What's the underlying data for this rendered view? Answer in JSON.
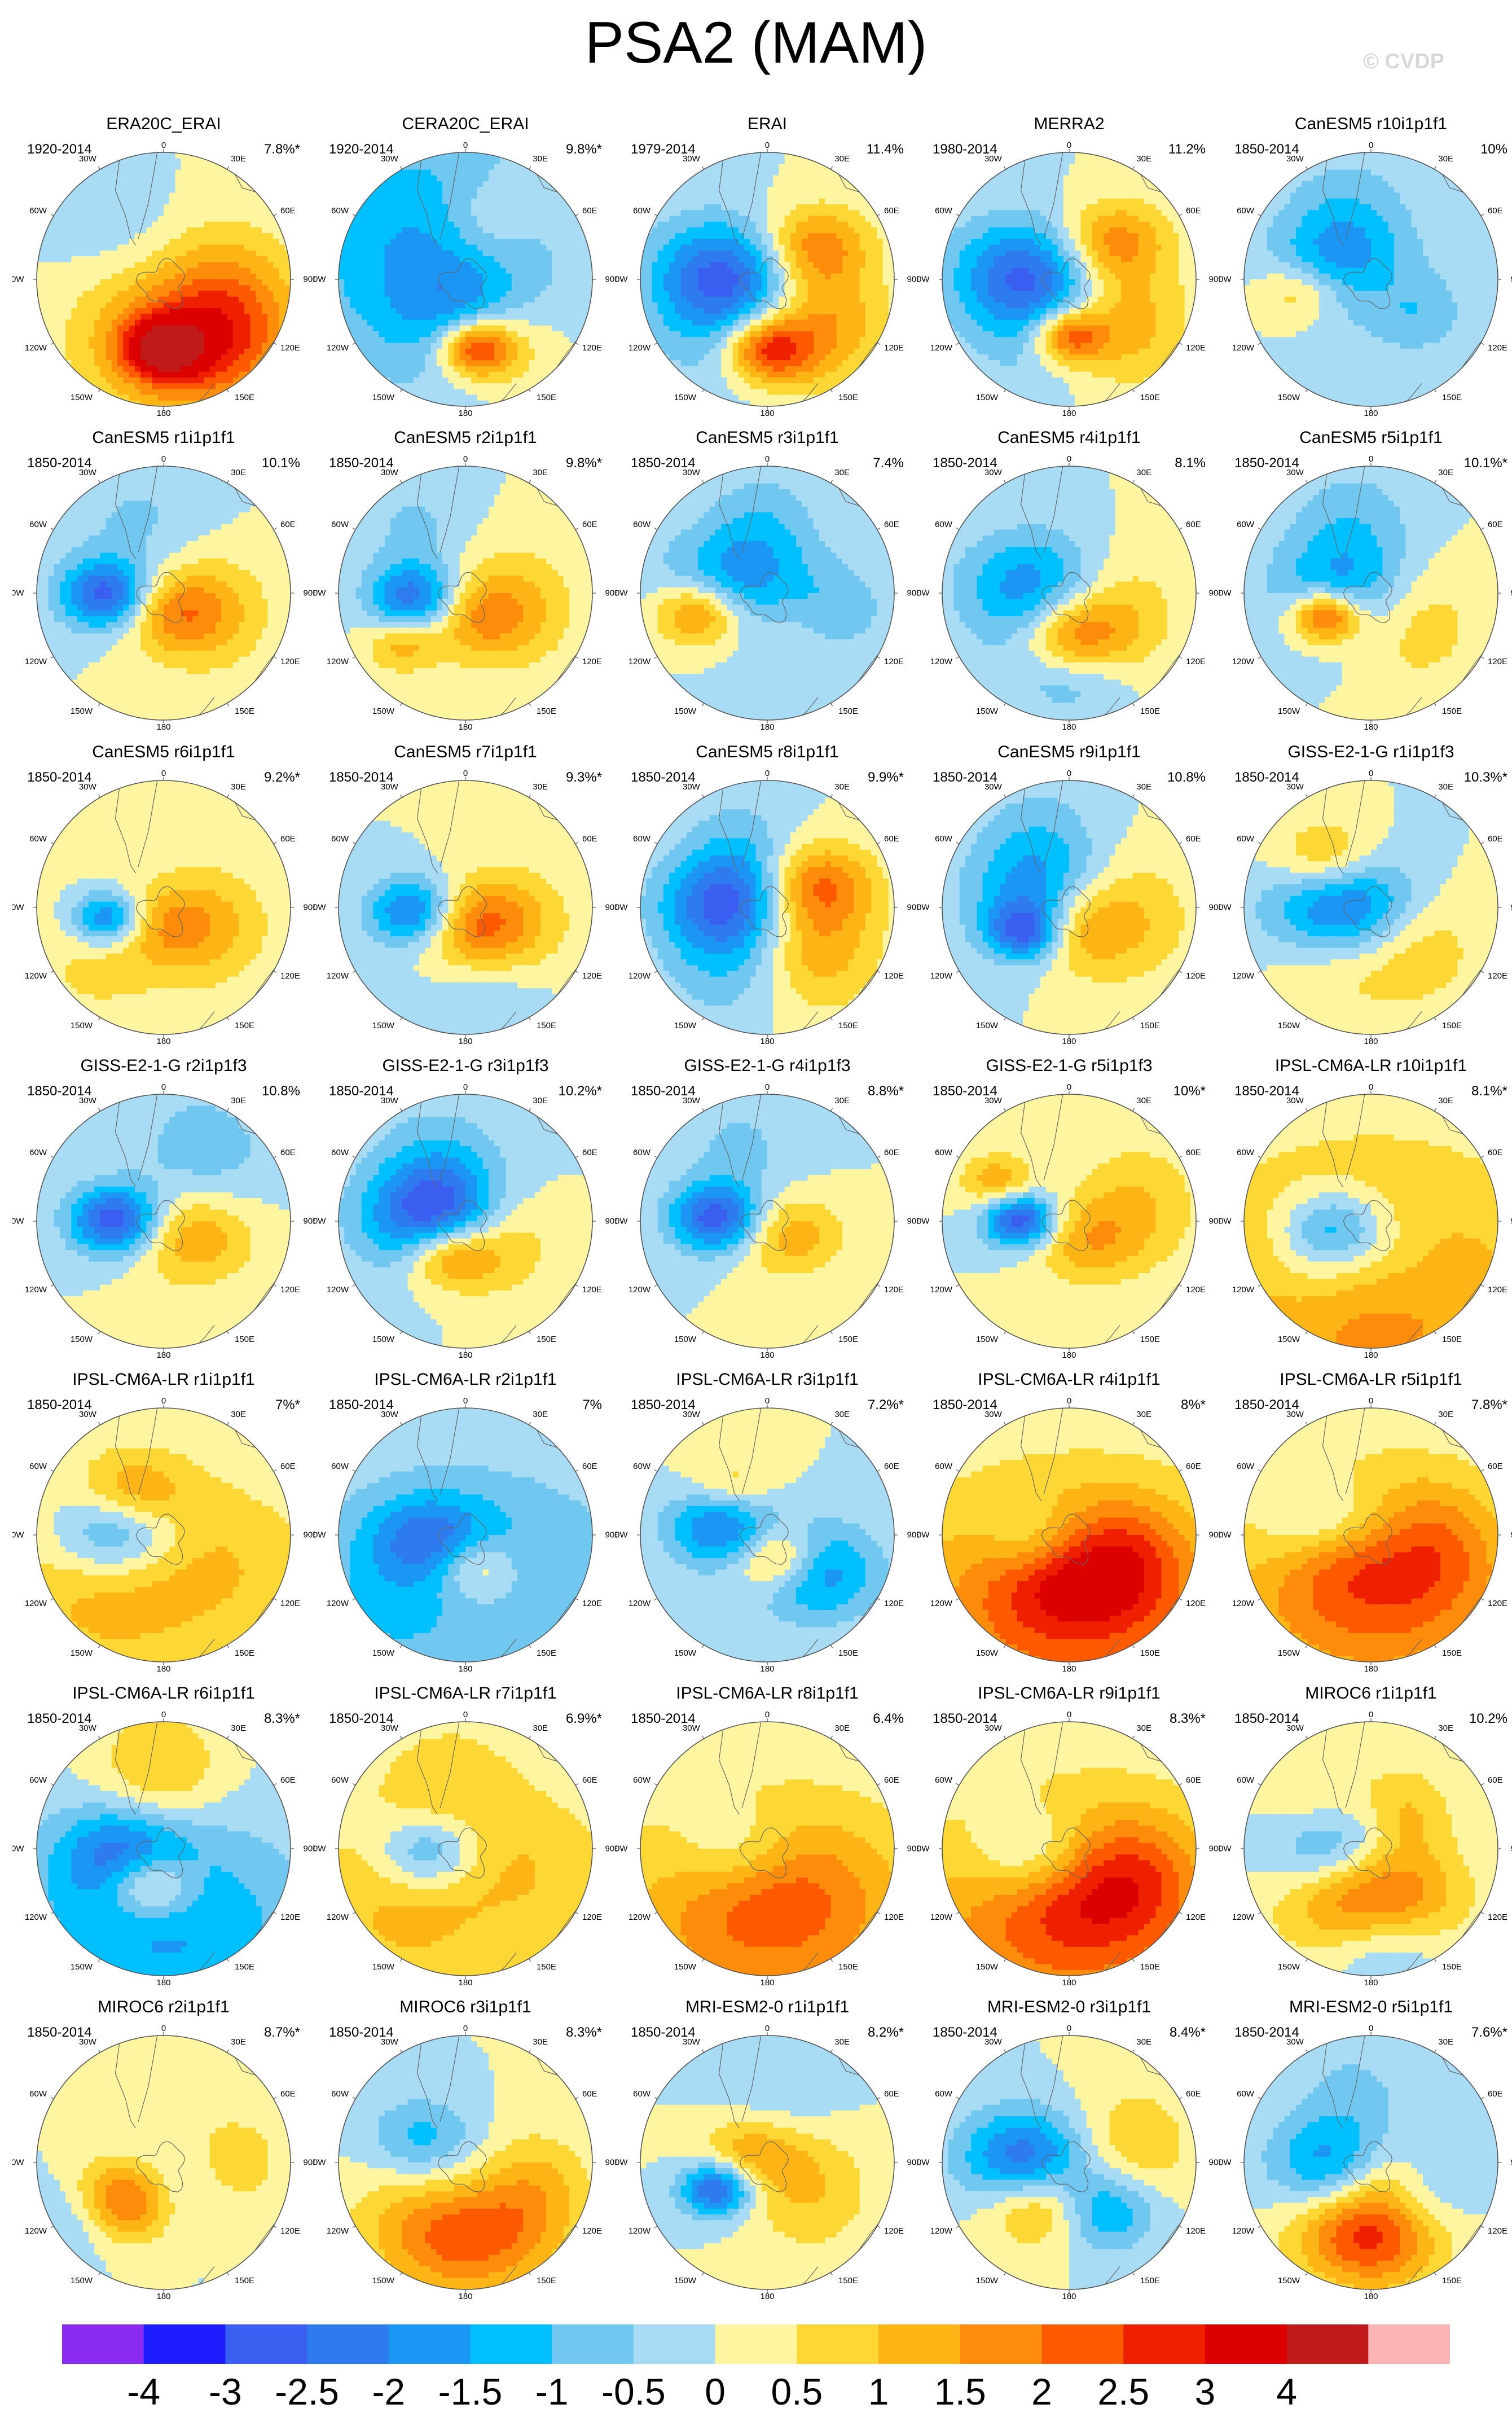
{
  "title": "PSA2 (MAM)",
  "credit": "© CVDP",
  "map_labels": {
    "top": "0",
    "bottom": "180",
    "left": "90W",
    "right": "90E",
    "upper_left_a": "30W",
    "upper_left_b": "60W",
    "upper_right_a": "30E",
    "upper_right_b": "60E",
    "lower_left_a": "120W",
    "lower_left_b": "150W",
    "lower_right_a": "120E",
    "lower_right_b": "150E"
  },
  "colors": {
    "levels": [
      "#8a2bf0",
      "#1f1bff",
      "#3a5ff0",
      "#2e7bf0",
      "#1c96f5",
      "#00c0ff",
      "#70c8f0",
      "#a8dcf5",
      "#fdf5a0",
      "#fdd835",
      "#fdb515",
      "#fd8c0a",
      "#fd5a00",
      "#ee2000",
      "#dd0000",
      "#c01a1a",
      "#fbb4b4"
    ]
  },
  "colorbar": {
    "labels": [
      "-4",
      "-3",
      "-2.5",
      "-2",
      "-1.5",
      "-1",
      "-0.5",
      "0",
      "0.5",
      "1",
      "1.5",
      "2",
      "2.5",
      "3",
      "4"
    ]
  },
  "panels": [
    {
      "title": "ERA20C_ERAI",
      "period": "1920-2014",
      "pct": "7.8%*",
      "blobs": [
        [
          0.0,
          0.55,
          -0.2,
          3.0
        ],
        [
          0.35,
          0.5,
          -0.55,
          2.0
        ],
        [
          0.95,
          0.45,
          0.45,
          1.7
        ],
        [
          0.55,
          0.12,
          -0.3,
          -0.5
        ],
        [
          3.8,
          0.45,
          -0.4,
          -0.5
        ]
      ]
    },
    {
      "title": "CERA20C_ERAI",
      "period": "1920-2014",
      "pct": "9.8%*",
      "blobs": [
        [
          0.15,
          0.55,
          -0.2,
          2.8
        ],
        [
          4.1,
          0.45,
          0.7,
          -1.5
        ],
        [
          0.0,
          0.2,
          -0.4,
          -1.0
        ],
        [
          0.6,
          0.6,
          0.3,
          1.0
        ],
        [
          2.8,
          0.5,
          0.25,
          0.8
        ]
      ]
    },
    {
      "title": "ERAI",
      "period": "1979-2014",
      "pct": "11.4%",
      "blobs": [
        [
          0.0,
          0.55,
          -0.25,
          2.8
        ],
        [
          4.6,
          0.35,
          -0.4,
          -2.2
        ],
        [
          2.2,
          0.45,
          -0.3,
          1.8
        ],
        [
          0.9,
          0.55,
          0.35,
          1.6
        ],
        [
          5.5,
          0.45,
          0.4,
          -1.0
        ]
      ]
    },
    {
      "title": "MERRA2",
      "period": "1980-2014",
      "pct": "11.2%",
      "blobs": [
        [
          0.0,
          0.45,
          -0.2,
          2.4
        ],
        [
          4.6,
          0.35,
          -0.4,
          -2.2
        ],
        [
          2.3,
          0.45,
          -0.3,
          1.8
        ],
        [
          0.9,
          0.55,
          0.35,
          1.4
        ],
        [
          5.6,
          0.4,
          0.4,
          -0.8
        ]
      ]
    },
    {
      "title": "CanESM5 r10i1p1f1",
      "period": "1850-2014",
      "pct": "10%",
      "blobs": [
        [
          4.9,
          0.55,
          -0.25,
          1.6
        ],
        [
          4.5,
          0.25,
          -0.4,
          -1.8
        ],
        [
          0.8,
          0.4,
          -0.3,
          -1.0
        ],
        [
          0.3,
          0.15,
          0.25,
          0.8
        ],
        [
          3.5,
          0.55,
          0.35,
          -0.8
        ]
      ]
    },
    {
      "title": "CanESM5 r1i1p1f1",
      "period": "1850-2014",
      "pct": "10.1%",
      "blobs": [
        [
          4.75,
          0.45,
          -0.25,
          -2.8
        ],
        [
          0.3,
          0.15,
          -0.3,
          1.5
        ],
        [
          1.2,
          0.4,
          0.35,
          1.0
        ],
        [
          3.5,
          0.55,
          0.4,
          -0.6
        ]
      ]
    },
    {
      "title": "CanESM5 r2i1p1f1",
      "period": "1850-2014",
      "pct": "9.8%*",
      "blobs": [
        [
          4.8,
          0.4,
          -0.25,
          -2.4
        ],
        [
          5.4,
          0.65,
          -0.2,
          1.2
        ],
        [
          0.4,
          0.2,
          -0.3,
          1.2
        ],
        [
          1.3,
          0.4,
          0.35,
          1.0
        ],
        [
          3.8,
          0.65,
          0.3,
          -0.6
        ]
      ]
    },
    {
      "title": "CanESM5 r3i1p1f1",
      "period": "1850-2014",
      "pct": "7.4%",
      "blobs": [
        [
          5.0,
          0.55,
          -0.25,
          2.4
        ],
        [
          4.5,
          0.28,
          -0.4,
          -1.8
        ],
        [
          1.3,
          0.45,
          -0.35,
          -1.0
        ],
        [
          0.7,
          0.25,
          0.25,
          0.8
        ],
        [
          3.2,
          0.55,
          0.3,
          -0.8
        ]
      ]
    },
    {
      "title": "CanESM5 r4i1p1f1",
      "period": "1850-2014",
      "pct": "8.1%",
      "blobs": [
        [
          0.0,
          0.35,
          -0.3,
          2.2
        ],
        [
          4.5,
          0.28,
          -0.4,
          -1.8
        ],
        [
          0.1,
          0.65,
          -0.3,
          -1.0
        ],
        [
          1.2,
          0.4,
          0.35,
          1.0
        ],
        [
          5.6,
          0.5,
          0.3,
          -0.6
        ]
      ]
    },
    {
      "title": "CanESM5 r5i1p1f1",
      "period": "1850-2014",
      "pct": "10.1%*",
      "blobs": [
        [
          5.2,
          0.4,
          -0.2,
          3.0
        ],
        [
          4.7,
          0.22,
          -0.4,
          -1.6
        ],
        [
          1.0,
          0.4,
          0.35,
          1.0
        ],
        [
          3.4,
          0.55,
          0.35,
          -0.8
        ]
      ]
    },
    {
      "title": "CanESM5 r6i1p1f1",
      "period": "1850-2014",
      "pct": "9.2%*",
      "blobs": [
        [
          4.9,
          0.45,
          -0.2,
          -2.4
        ],
        [
          0.1,
          0.15,
          -0.3,
          1.0
        ],
        [
          1.2,
          0.4,
          0.35,
          1.0
        ],
        [
          5.4,
          0.7,
          0.4,
          0.6
        ]
      ]
    },
    {
      "title": "CanESM5 r7i1p1f1",
      "period": "1850-2014",
      "pct": "9.3%*",
      "blobs": [
        [
          4.8,
          0.4,
          -0.25,
          -2.4
        ],
        [
          0.3,
          0.15,
          -0.3,
          1.8
        ],
        [
          1.2,
          0.4,
          0.35,
          1.0
        ],
        [
          0.3,
          0.7,
          0.35,
          -0.6
        ]
      ]
    },
    {
      "title": "CanESM5 r8i1p1f1",
      "period": "1850-2014",
      "pct": "9.9%*",
      "blobs": [
        [
          4.6,
          0.35,
          -0.35,
          -2.2
        ],
        [
          2.0,
          0.45,
          -0.3,
          1.8
        ],
        [
          0.9,
          0.5,
          0.35,
          1.4
        ],
        [
          5.6,
          0.5,
          0.35,
          -1.0
        ],
        [
          3.6,
          0.5,
          0.3,
          -0.8
        ]
      ]
    },
    {
      "title": "CanESM5 r9i1p1f1",
      "period": "1850-2014",
      "pct": "10.8%",
      "blobs": [
        [
          5.2,
          0.4,
          -0.2,
          -2.2
        ],
        [
          4.4,
          0.22,
          -0.4,
          -1.6
        ],
        [
          0.4,
          0.15,
          0.25,
          1.4
        ],
        [
          1.4,
          0.45,
          0.35,
          1.2
        ],
        [
          3.6,
          0.55,
          0.35,
          -0.8
        ]
      ]
    },
    {
      "title": "GISS-E2-1-G r1i1p1f3",
      "period": "1850-2014",
      "pct": "10.3%*",
      "blobs": [
        [
          4.6,
          0.22,
          -0.4,
          -3.0
        ],
        [
          3.9,
          0.5,
          -0.3,
          1.8
        ],
        [
          0.9,
          0.45,
          0.35,
          1.0
        ],
        [
          5.6,
          0.45,
          0.35,
          0.8
        ]
      ]
    },
    {
      "title": "GISS-E2-1-G r2i1p1f3",
      "period": "1850-2014",
      "pct": "10.8%",
      "blobs": [
        [
          4.7,
          0.38,
          -0.25,
          -3.0
        ],
        [
          1.1,
          0.25,
          -0.35,
          1.6
        ],
        [
          2.6,
          0.6,
          0.4,
          -0.8
        ]
      ]
    },
    {
      "title": "GISS-E2-1-G r3i1p1f3",
      "period": "1850-2014",
      "pct": "10.2%*",
      "blobs": [
        [
          4.6,
          0.22,
          -0.4,
          -3.0
        ],
        [
          5.8,
          0.3,
          -0.25,
          2.4
        ],
        [
          1.1,
          0.3,
          0.3,
          1.4
        ],
        [
          3.6,
          0.5,
          0.35,
          -0.8
        ]
      ]
    },
    {
      "title": "GISS-E2-1-G r4i1p1f3",
      "period": "1850-2014",
      "pct": "8.8%*",
      "blobs": [
        [
          4.65,
          0.4,
          -0.25,
          -2.8
        ],
        [
          1.0,
          0.2,
          -0.3,
          1.4
        ],
        [
          3.5,
          0.6,
          0.35,
          -0.6
        ]
      ]
    },
    {
      "title": "GISS-E2-1-G r5i1p1f3",
      "period": "1850-2014",
      "pct": "10%*",
      "blobs": [
        [
          4.7,
          0.38,
          -0.2,
          -3.0
        ],
        [
          4.2,
          0.65,
          -0.2,
          1.4
        ],
        [
          0.6,
          0.2,
          -0.3,
          1.2
        ],
        [
          1.8,
          0.55,
          0.35,
          1.0
        ]
      ]
    },
    {
      "title": "IPSL-CM6A-LR r10i1p1f1",
      "period": "1850-2014",
      "pct": "8.1%*",
      "blobs": [
        [
          0.0,
          0.5,
          -0.9,
          2.4
        ],
        [
          4.9,
          0.3,
          -0.3,
          -2.0
        ],
        [
          0.3,
          0.35,
          -0.5,
          -1.2
        ],
        [
          5.4,
          0.7,
          0.3,
          -0.6
        ]
      ]
    },
    {
      "title": "IPSL-CM6A-LR r1i1p1f1",
      "period": "1850-2014",
      "pct": "7%*",
      "blobs": [
        [
          4.6,
          0.35,
          -0.35,
          -2.4
        ],
        [
          0.0,
          0.5,
          -0.75,
          2.4
        ],
        [
          3.8,
          0.4,
          -0.3,
          1.6
        ],
        [
          0.2,
          0.72,
          -0.6,
          -1.2
        ]
      ]
    },
    {
      "title": "IPSL-CM6A-LR r2i1p1f1",
      "period": "1850-2014",
      "pct": "7%",
      "blobs": [
        [
          0.0,
          0.48,
          -0.8,
          -2.0
        ],
        [
          4.8,
          0.3,
          -0.3,
          -1.4
        ],
        [
          0.3,
          0.28,
          -0.25,
          1.6
        ],
        [
          0.2,
          0.7,
          -0.5,
          1.0
        ]
      ]
    },
    {
      "title": "IPSL-CM6A-LR r3i1p1f1",
      "period": "1850-2014",
      "pct": "7.2%*",
      "blobs": [
        [
          4.5,
          0.35,
          -0.3,
          -2.4
        ],
        [
          0.4,
          0.2,
          -0.25,
          2.4
        ],
        [
          0.9,
          0.45,
          -0.35,
          -2.2
        ],
        [
          3.8,
          0.45,
          -0.25,
          1.2
        ]
      ]
    },
    {
      "title": "IPSL-CM6A-LR r4i1p1f1",
      "period": "1850-2014",
      "pct": "8%*",
      "blobs": [
        [
          0.0,
          0.55,
          -0.9,
          2.4
        ],
        [
          4.9,
          0.25,
          -0.3,
          -1.4
        ],
        [
          0.1,
          0.28,
          -0.4,
          1.4
        ],
        [
          1.2,
          0.55,
          0.35,
          0.8
        ]
      ]
    },
    {
      "title": "IPSL-CM6A-LR r5i1p1f1",
      "period": "1850-2014",
      "pct": "7.8%*",
      "blobs": [
        [
          0.0,
          0.4,
          -0.8,
          2.4
        ],
        [
          4.7,
          0.32,
          -0.35,
          -2.2
        ],
        [
          5.2,
          0.3,
          -0.3,
          1.4
        ],
        [
          1.4,
          0.5,
          0.35,
          0.8
        ]
      ]
    },
    {
      "title": "IPSL-CM6A-LR r6i1p1f1",
      "period": "1850-2014",
      "pct": "8.3%*",
      "blobs": [
        [
          0.0,
          0.62,
          -0.8,
          -1.6
        ],
        [
          5.9,
          0.3,
          -0.25,
          2.4
        ],
        [
          4.9,
          0.3,
          -0.35,
          -2.0
        ],
        [
          3.2,
          0.6,
          0.35,
          1.2
        ]
      ]
    },
    {
      "title": "IPSL-CM6A-LR r7i1p1f1",
      "period": "1850-2014",
      "pct": "6.9%*",
      "blobs": [
        [
          0.0,
          0.45,
          -0.8,
          1.8
        ],
        [
          4.8,
          0.28,
          -0.3,
          -2.0
        ],
        [
          0.3,
          0.72,
          -0.5,
          -0.8
        ],
        [
          3.4,
          0.55,
          0.35,
          0.6
        ]
      ]
    },
    {
      "title": "IPSL-CM6A-LR r8i1p1f1",
      "period": "1850-2014",
      "pct": "6.4%",
      "blobs": [
        [
          0.0,
          0.55,
          -0.9,
          1.8
        ],
        [
          4.8,
          0.25,
          -0.35,
          -1.2
        ],
        [
          0.2,
          0.3,
          -0.5,
          0.8
        ]
      ]
    },
    {
      "title": "IPSL-CM6A-LR r9i1p1f1",
      "period": "1850-2014",
      "pct": "8.3%*",
      "blobs": [
        [
          0.0,
          0.55,
          -0.9,
          2.2
        ],
        [
          4.9,
          0.28,
          -0.35,
          -1.8
        ],
        [
          0.3,
          0.3,
          -0.45,
          1.0
        ],
        [
          1.2,
          0.6,
          0.35,
          0.8
        ]
      ]
    },
    {
      "title": "MIROC6 r1i1p1f1",
      "period": "1850-2014",
      "pct": "10.2%",
      "blobs": [
        [
          0.0,
          0.42,
          -0.45,
          3.0
        ],
        [
          4.7,
          0.3,
          -0.35,
          -2.0
        ],
        [
          0.1,
          0.72,
          -0.35,
          -1.6
        ],
        [
          2.4,
          0.4,
          0.25,
          1.0
        ],
        [
          4.0,
          0.55,
          0.3,
          0.8
        ]
      ]
    },
    {
      "title": "MIROC6 r2i1p1f1",
      "period": "1850-2014",
      "pct": "8.7%*",
      "blobs": [
        [
          5.5,
          0.45,
          -0.3,
          2.8
        ],
        [
          5.3,
          0.75,
          -0.3,
          -1.2
        ],
        [
          0.3,
          0.25,
          0.25,
          -0.8
        ],
        [
          1.6,
          0.55,
          0.3,
          0.8
        ]
      ]
    },
    {
      "title": "MIROC6 r3i1p1f1",
      "period": "1850-2014",
      "pct": "8.3%*",
      "blobs": [
        [
          0.0,
          0.48,
          -0.5,
          3.0
        ],
        [
          0.0,
          0.2,
          -0.4,
          -1.2
        ],
        [
          4.2,
          0.4,
          -0.3,
          -1.2
        ],
        [
          1.3,
          0.55,
          0.3,
          0.8
        ]
      ]
    },
    {
      "title": "MRI-ESM2-0 r1i1p1f1",
      "period": "1850-2014",
      "pct": "8.2%*",
      "blobs": [
        [
          5.2,
          0.45,
          -0.2,
          -2.8
        ],
        [
          4.1,
          0.15,
          -0.3,
          1.4
        ],
        [
          1.0,
          0.4,
          0.35,
          1.0
        ],
        [
          3.0,
          0.5,
          0.35,
          -0.6
        ]
      ]
    },
    {
      "title": "MRI-ESM2-0 r3i1p1f1",
      "period": "1850-2014",
      "pct": "8.4%*",
      "blobs": [
        [
          4.6,
          0.35,
          -0.35,
          -2.4
        ],
        [
          5.8,
          0.4,
          -0.3,
          1.8
        ],
        [
          0.6,
          0.45,
          -0.3,
          -2.0
        ],
        [
          1.8,
          0.5,
          0.35,
          1.0
        ]
      ]
    },
    {
      "title": "MRI-ESM2-0 r5i1p1f1",
      "period": "1850-2014",
      "pct": "7.6%*",
      "blobs": [
        [
          0.0,
          0.55,
          -0.4,
          3.0
        ],
        [
          4.8,
          0.3,
          -0.35,
          -1.8
        ],
        [
          0.8,
          0.4,
          -0.35,
          -1.2
        ],
        [
          0.6,
          0.15,
          0.25,
          1.2
        ],
        [
          3.4,
          0.55,
          0.35,
          -0.6
        ]
      ]
    }
  ]
}
